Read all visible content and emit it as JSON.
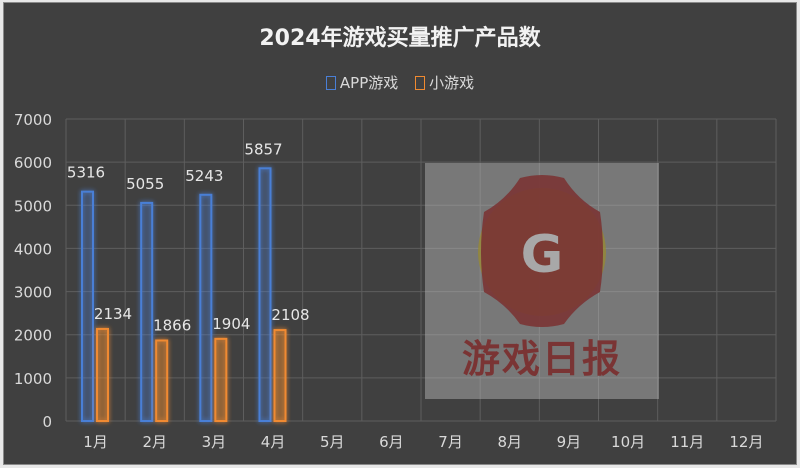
{
  "chart_data": {
    "type": "bar",
    "title": "2024年游戏买量推广产品数",
    "categories": [
      "1月",
      "2月",
      "3月",
      "4月",
      "5月",
      "6月",
      "7月",
      "8月",
      "9月",
      "10月",
      "11月",
      "12月"
    ],
    "series": [
      {
        "name": "APP游戏",
        "color": "#4a7fd6",
        "values": [
          5316,
          5055,
          5243,
          5857,
          null,
          null,
          null,
          null,
          null,
          null,
          null,
          null
        ]
      },
      {
        "name": "小游戏",
        "color": "#f08a30",
        "values": [
          2134,
          1866,
          1904,
          2108,
          null,
          null,
          null,
          null,
          null,
          null,
          null,
          null
        ]
      }
    ],
    "ylim": [
      0,
      7000
    ],
    "yticks": [
      0,
      1000,
      2000,
      3000,
      4000,
      5000,
      6000,
      7000
    ],
    "grid": true,
    "legend": "top",
    "xlabel": "",
    "ylabel": ""
  },
  "watermark": {
    "text": "游戏日报",
    "logo_letter": "G"
  }
}
